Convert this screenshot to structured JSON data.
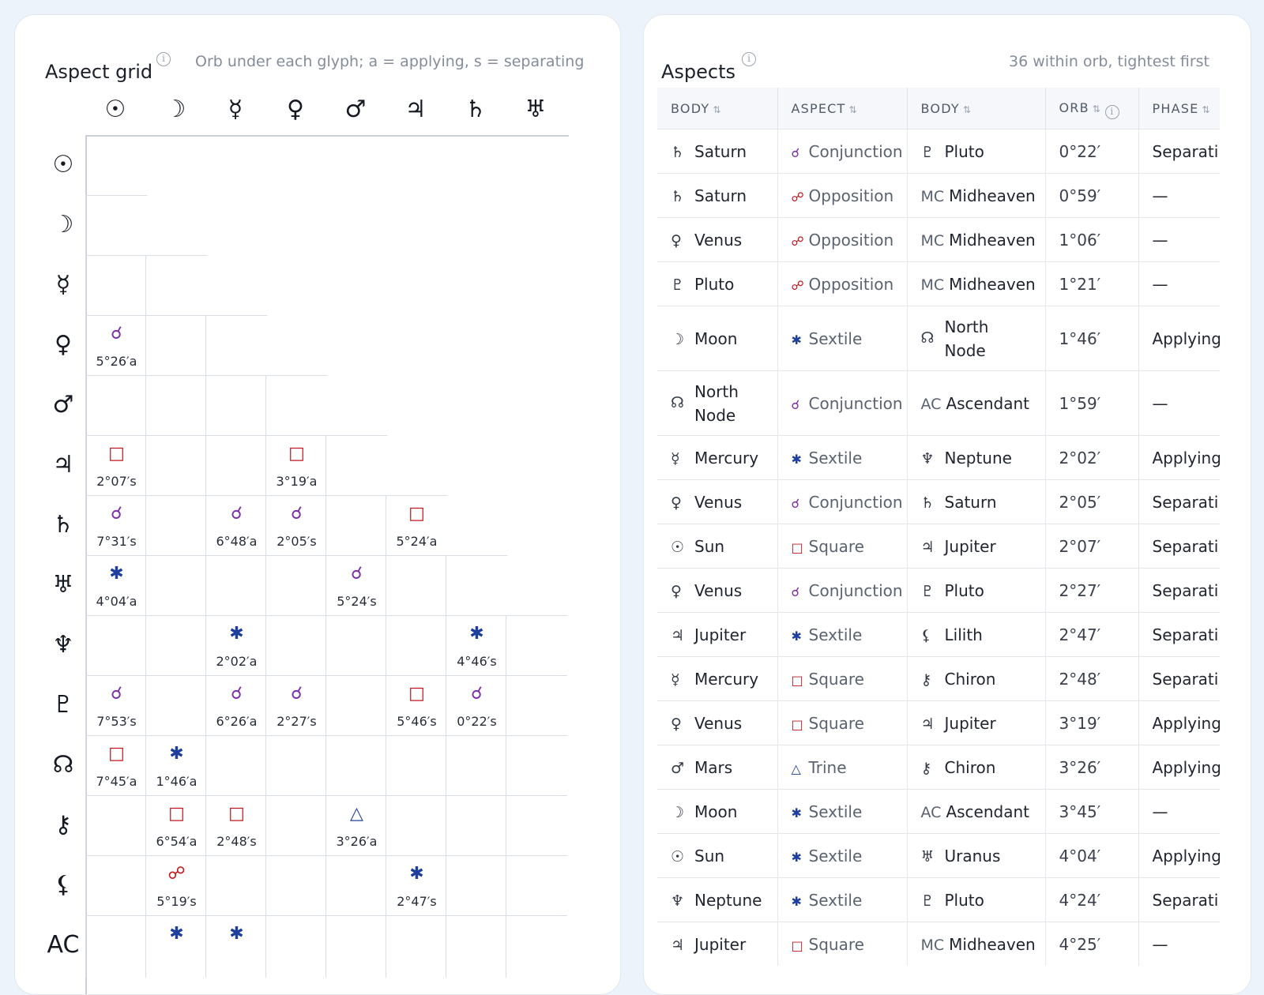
{
  "aspect_grid": {
    "title": "Aspect grid",
    "subtitle": "Orb under each glyph; a = applying, s = separating",
    "columns": [
      "☉",
      "☽",
      "☿",
      "♀",
      "♂",
      "♃",
      "♄",
      "♅"
    ],
    "rows": [
      "☉",
      "☽",
      "☿",
      "♀",
      "♂",
      "♃",
      "♄",
      "♅",
      "♆",
      "♇",
      "☊",
      "⚷",
      "⚸",
      "AC"
    ],
    "cells": [
      {
        "row": 3,
        "col": 0,
        "glyph": "☌",
        "orb": "5°26′a",
        "kind": "conjunction"
      },
      {
        "row": 5,
        "col": 0,
        "glyph": "□",
        "orb": "2°07′s",
        "kind": "square"
      },
      {
        "row": 5,
        "col": 3,
        "glyph": "□",
        "orb": "3°19′a",
        "kind": "square"
      },
      {
        "row": 6,
        "col": 0,
        "glyph": "☌",
        "orb": "7°31′s",
        "kind": "conjunction"
      },
      {
        "row": 6,
        "col": 2,
        "glyph": "☌",
        "orb": "6°48′a",
        "kind": "conjunction"
      },
      {
        "row": 6,
        "col": 3,
        "glyph": "☌",
        "orb": "2°05′s",
        "kind": "conjunction"
      },
      {
        "row": 6,
        "col": 5,
        "glyph": "□",
        "orb": "5°24′a",
        "kind": "square"
      },
      {
        "row": 7,
        "col": 0,
        "glyph": "✱",
        "orb": "4°04′a",
        "kind": "sextile"
      },
      {
        "row": 7,
        "col": 4,
        "glyph": "☌",
        "orb": "5°24′s",
        "kind": "conjunction"
      },
      {
        "row": 8,
        "col": 2,
        "glyph": "✱",
        "orb": "2°02′a",
        "kind": "sextile"
      },
      {
        "row": 8,
        "col": 6,
        "glyph": "✱",
        "orb": "4°46′s",
        "kind": "sextile"
      },
      {
        "row": 9,
        "col": 0,
        "glyph": "☌",
        "orb": "7°53′s",
        "kind": "conjunction"
      },
      {
        "row": 9,
        "col": 2,
        "glyph": "☌",
        "orb": "6°26′a",
        "kind": "conjunction"
      },
      {
        "row": 9,
        "col": 3,
        "glyph": "☌",
        "orb": "2°27′s",
        "kind": "conjunction"
      },
      {
        "row": 9,
        "col": 5,
        "glyph": "□",
        "orb": "5°46′s",
        "kind": "square"
      },
      {
        "row": 9,
        "col": 6,
        "glyph": "☌",
        "orb": "0°22′s",
        "kind": "conjunction"
      },
      {
        "row": 10,
        "col": 0,
        "glyph": "□",
        "orb": "7°45′a",
        "kind": "square"
      },
      {
        "row": 10,
        "col": 1,
        "glyph": "✱",
        "orb": "1°46′a",
        "kind": "sextile"
      },
      {
        "row": 11,
        "col": 1,
        "glyph": "□",
        "orb": "6°54′a",
        "kind": "square"
      },
      {
        "row": 11,
        "col": 2,
        "glyph": "□",
        "orb": "2°48′s",
        "kind": "square"
      },
      {
        "row": 11,
        "col": 4,
        "glyph": "△",
        "orb": "3°26′a",
        "kind": "trine"
      },
      {
        "row": 12,
        "col": 1,
        "glyph": "☍",
        "orb": "5°19′s",
        "kind": "opposition"
      },
      {
        "row": 12,
        "col": 5,
        "glyph": "✱",
        "orb": "2°47′s",
        "kind": "sextile"
      },
      {
        "row": 13,
        "col": 1,
        "glyph": "✱",
        "orb": "",
        "kind": "sextile"
      },
      {
        "row": 13,
        "col": 2,
        "glyph": "✱",
        "orb": "",
        "kind": "sextile"
      }
    ]
  },
  "aspects": {
    "title": "Aspects",
    "summary": "36 within orb, tightest first",
    "headers": {
      "body1": "BODY",
      "aspect": "ASPECT",
      "body2": "BODY",
      "orb": "ORB",
      "phase": "PHASE"
    },
    "rows": [
      {
        "g1": "♄",
        "b1": "Saturn",
        "ag": "☌",
        "asp": "Conjunction",
        "kind": "conjunction",
        "g2": "♇",
        "b2": "Pluto",
        "orb": "0°22′",
        "phase": "Separating"
      },
      {
        "g1": "♄",
        "b1": "Saturn",
        "ag": "☍",
        "asp": "Opposition",
        "kind": "opposition",
        "g2": "MC",
        "b2": "Midheaven",
        "orb": "0°59′",
        "phase": "—"
      },
      {
        "g1": "♀",
        "b1": "Venus",
        "ag": "☍",
        "asp": "Opposition",
        "kind": "opposition",
        "g2": "MC",
        "b2": "Midheaven",
        "orb": "1°06′",
        "phase": "—"
      },
      {
        "g1": "♇",
        "b1": "Pluto",
        "ag": "☍",
        "asp": "Opposition",
        "kind": "opposition",
        "g2": "MC",
        "b2": "Midheaven",
        "orb": "1°21′",
        "phase": "—"
      },
      {
        "g1": "☽",
        "b1": "Moon",
        "ag": "✱",
        "asp": "Sextile",
        "kind": "sextile",
        "g2": "☊",
        "b2": "North Node",
        "orb": "1°46′",
        "phase": "Applying"
      },
      {
        "g1": "☊",
        "b1": "North Node",
        "ag": "☌",
        "asp": "Conjunction",
        "kind": "conjunction",
        "g2": "AC",
        "b2": "Ascendant",
        "orb": "1°59′",
        "phase": "—"
      },
      {
        "g1": "☿",
        "b1": "Mercury",
        "ag": "✱",
        "asp": "Sextile",
        "kind": "sextile",
        "g2": "♆",
        "b2": "Neptune",
        "orb": "2°02′",
        "phase": "Applying"
      },
      {
        "g1": "♀",
        "b1": "Venus",
        "ag": "☌",
        "asp": "Conjunction",
        "kind": "conjunction",
        "g2": "♄",
        "b2": "Saturn",
        "orb": "2°05′",
        "phase": "Separating"
      },
      {
        "g1": "☉",
        "b1": "Sun",
        "ag": "□",
        "asp": "Square",
        "kind": "square",
        "g2": "♃",
        "b2": "Jupiter",
        "orb": "2°07′",
        "phase": "Separating"
      },
      {
        "g1": "♀",
        "b1": "Venus",
        "ag": "☌",
        "asp": "Conjunction",
        "kind": "conjunction",
        "g2": "♇",
        "b2": "Pluto",
        "orb": "2°27′",
        "phase": "Separating"
      },
      {
        "g1": "♃",
        "b1": "Jupiter",
        "ag": "✱",
        "asp": "Sextile",
        "kind": "sextile",
        "g2": "⚸",
        "b2": "Lilith",
        "orb": "2°47′",
        "phase": "Separating"
      },
      {
        "g1": "☿",
        "b1": "Mercury",
        "ag": "□",
        "asp": "Square",
        "kind": "square",
        "g2": "⚷",
        "b2": "Chiron",
        "orb": "2°48′",
        "phase": "Separating"
      },
      {
        "g1": "♀",
        "b1": "Venus",
        "ag": "□",
        "asp": "Square",
        "kind": "square",
        "g2": "♃",
        "b2": "Jupiter",
        "orb": "3°19′",
        "phase": "Applying"
      },
      {
        "g1": "♂",
        "b1": "Mars",
        "ag": "△",
        "asp": "Trine",
        "kind": "trine",
        "g2": "⚷",
        "b2": "Chiron",
        "orb": "3°26′",
        "phase": "Applying"
      },
      {
        "g1": "☽",
        "b1": "Moon",
        "ag": "✱",
        "asp": "Sextile",
        "kind": "sextile",
        "g2": "AC",
        "b2": "Ascendant",
        "orb": "3°45′",
        "phase": "—"
      },
      {
        "g1": "☉",
        "b1": "Sun",
        "ag": "✱",
        "asp": "Sextile",
        "kind": "sextile",
        "g2": "♅",
        "b2": "Uranus",
        "orb": "4°04′",
        "phase": "Applying"
      },
      {
        "g1": "♆",
        "b1": "Neptune",
        "ag": "✱",
        "asp": "Sextile",
        "kind": "sextile",
        "g2": "♇",
        "b2": "Pluto",
        "orb": "4°24′",
        "phase": "Separating"
      },
      {
        "g1": "♃",
        "b1": "Jupiter",
        "ag": "□",
        "asp": "Square",
        "kind": "square",
        "g2": "MC",
        "b2": "Midheaven",
        "orb": "4°25′",
        "phase": "—"
      }
    ]
  },
  "colors": {
    "conjunction": "#7b2fa8",
    "opposition": "#c4161c",
    "square": "#c4161c",
    "sextile": "#1f3f9e",
    "trine": "#1f3f9e"
  }
}
